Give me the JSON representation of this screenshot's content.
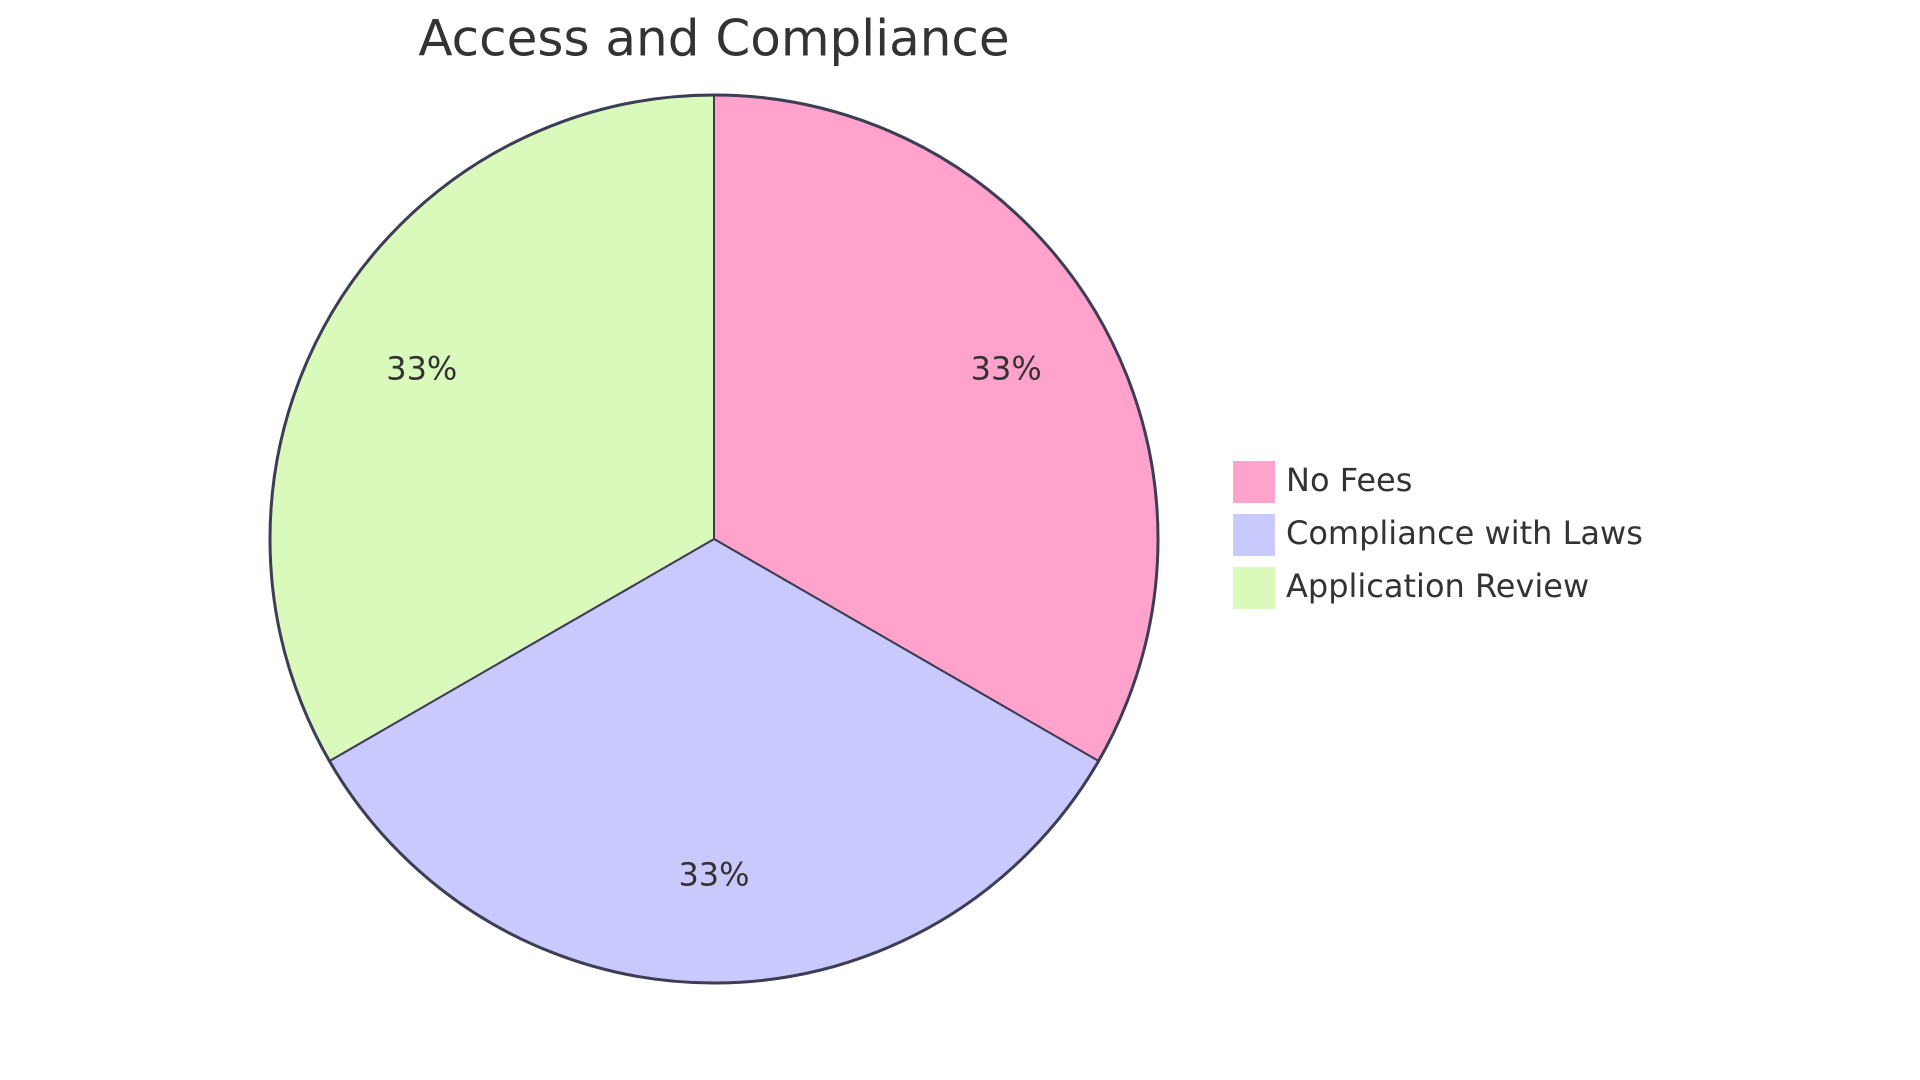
{
  "chart_data": {
    "type": "pie",
    "title": "Access and Compliance",
    "categories": [
      "No Fees",
      "Compliance with Laws",
      "Application Review"
    ],
    "values": [
      33,
      33,
      33
    ],
    "value_labels": [
      "33%",
      "33%",
      "33%"
    ],
    "colors": [
      "#ffa3cd",
      "#c9c9fd",
      "#dafabb"
    ],
    "legend": "right"
  }
}
